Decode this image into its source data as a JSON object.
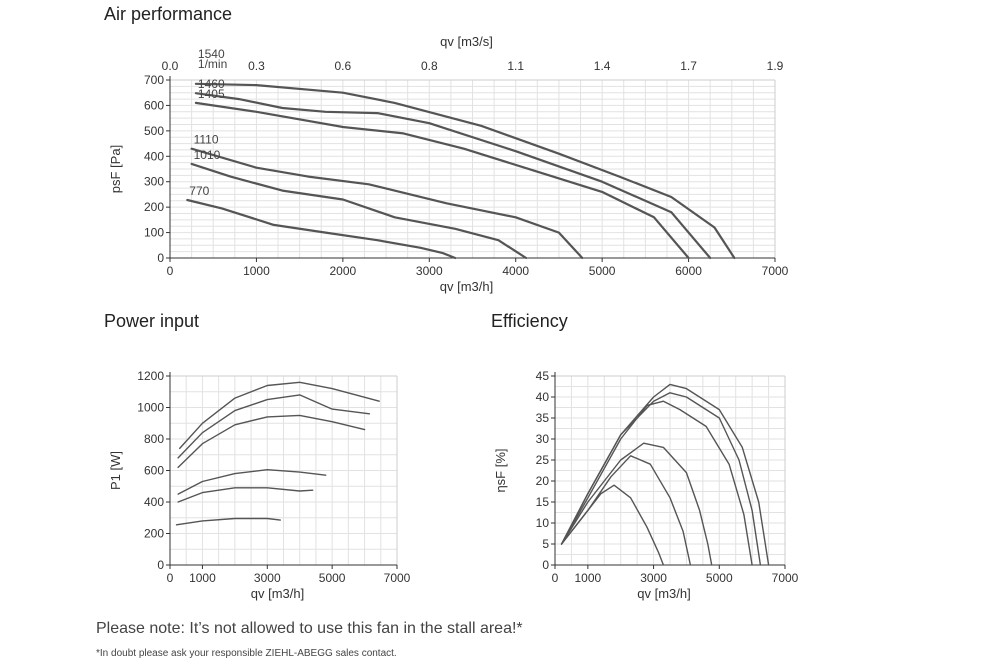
{
  "chart_data": [
    {
      "type": "line",
      "title": "Air performance",
      "xlabel": "qv [m3/h]",
      "ylabel": "psF [Pa]",
      "x2label": "qv [m3/s]",
      "xlim": [
        0,
        7000
      ],
      "ylim": [
        0,
        700
      ],
      "xticks": [
        "0",
        "1000",
        "2000",
        "3000",
        "4000",
        "5000",
        "6000",
        "7000"
      ],
      "yticks": [
        "0",
        "100",
        "200",
        "300",
        "400",
        "500",
        "600",
        "700"
      ],
      "x2ticks": [
        "0.0",
        "0.3",
        "0.6",
        "0.8",
        "1.1",
        "1.4",
        "1.7",
        "1.9"
      ],
      "grid": true,
      "speed_unit": "1/min",
      "series": [
        {
          "name": "1540",
          "x": [
            300,
            1000,
            2000,
            2600,
            3600,
            4500,
            5200,
            5800,
            6300,
            6530
          ],
          "y": [
            685,
            680,
            650,
            610,
            520,
            410,
            320,
            240,
            120,
            0
          ]
        },
        {
          "name": "1460",
          "x": [
            300,
            800,
            1300,
            1800,
            2400,
            3000,
            4000,
            5000,
            5800,
            6250
          ],
          "y": [
            648,
            625,
            590,
            575,
            570,
            530,
            420,
            300,
            180,
            0
          ]
        },
        {
          "name": "1405",
          "x": [
            300,
            1000,
            2000,
            2700,
            3400,
            4200,
            5000,
            5600,
            6000
          ],
          "y": [
            610,
            575,
            515,
            490,
            430,
            345,
            260,
            160,
            0
          ]
        },
        {
          "name": "1110",
          "x": [
            250,
            1000,
            1600,
            2300,
            3200,
            4000,
            4500,
            4770
          ],
          "y": [
            430,
            355,
            320,
            290,
            215,
            160,
            100,
            0
          ]
        },
        {
          "name": "1010",
          "x": [
            250,
            700,
            1300,
            2000,
            2600,
            3300,
            3800,
            4120
          ],
          "y": [
            370,
            320,
            265,
            230,
            160,
            115,
            70,
            0
          ]
        },
        {
          "name": "770",
          "x": [
            200,
            600,
            1200,
            1800,
            2400,
            2900,
            3150,
            3300
          ],
          "y": [
            228,
            195,
            130,
            100,
            70,
            40,
            20,
            0
          ]
        }
      ]
    },
    {
      "type": "line",
      "title": "Power input",
      "xlabel": "qv [m3/h]",
      "ylabel": "P1 [W]",
      "xlim": [
        0,
        7000
      ],
      "ylim": [
        0,
        1200
      ],
      "xticks": [
        "0",
        "1000",
        "3000",
        "5000",
        "7000"
      ],
      "yticks": [
        "0",
        "200",
        "400",
        "600",
        "800",
        "1000",
        "1200"
      ],
      "grid": true,
      "series": [
        {
          "x": [
            300,
            1000,
            2000,
            3000,
            4000,
            5000,
            6450
          ],
          "y": [
            740,
            900,
            1060,
            1140,
            1160,
            1120,
            1040
          ]
        },
        {
          "x": [
            250,
            1000,
            2000,
            3000,
            4000,
            5000,
            6150
          ],
          "y": [
            680,
            840,
            980,
            1050,
            1080,
            990,
            960
          ]
        },
        {
          "x": [
            250,
            1000,
            2000,
            3000,
            4000,
            5000,
            6000
          ],
          "y": [
            620,
            770,
            890,
            940,
            950,
            910,
            860
          ]
        },
        {
          "x": [
            250,
            1000,
            2000,
            3000,
            4000,
            4800
          ],
          "y": [
            450,
            530,
            580,
            605,
            590,
            570
          ]
        },
        {
          "x": [
            250,
            1000,
            2000,
            3000,
            4000,
            4400
          ],
          "y": [
            400,
            460,
            490,
            490,
            470,
            475
          ]
        },
        {
          "x": [
            200,
            1000,
            2000,
            3000,
            3400
          ],
          "y": [
            255,
            280,
            295,
            295,
            285
          ]
        }
      ]
    },
    {
      "type": "line",
      "title": "Efficiency",
      "xlabel": "qv [m3/h]",
      "ylabel": "ηsF [%]",
      "xlim": [
        0,
        7000
      ],
      "ylim": [
        0,
        45
      ],
      "xticks": [
        "0",
        "1000",
        "3000",
        "5000",
        "7000"
      ],
      "yticks": [
        "0",
        "5",
        "10",
        "15",
        "20",
        "25",
        "30",
        "35",
        "40",
        "45"
      ],
      "grid": true,
      "series": [
        {
          "x": [
            200,
            1000,
            2000,
            3000,
            3500,
            4000,
            5000,
            5700,
            6200,
            6500
          ],
          "y": [
            5,
            17,
            31,
            40,
            43,
            42,
            37,
            28,
            15,
            0
          ]
        },
        {
          "x": [
            200,
            1000,
            2000,
            3000,
            3500,
            4000,
            5000,
            5600,
            6000,
            6250
          ],
          "y": [
            5,
            17,
            31,
            39,
            41,
            40,
            35,
            25,
            13,
            0
          ]
        },
        {
          "x": [
            200,
            1000,
            2000,
            2800,
            3300,
            3800,
            4600,
            5300,
            5750,
            6000
          ],
          "y": [
            5,
            16,
            30,
            38,
            39,
            37,
            33,
            24,
            12,
            0
          ]
        },
        {
          "x": [
            200,
            1000,
            2000,
            2700,
            3300,
            4000,
            4400,
            4650,
            4770
          ],
          "y": [
            5,
            15,
            25,
            29,
            28,
            22,
            13,
            5,
            0
          ]
        },
        {
          "x": [
            200,
            1000,
            1700,
            2300,
            2900,
            3500,
            3900,
            4120
          ],
          "y": [
            5,
            13,
            21,
            26,
            24,
            16,
            8,
            0
          ]
        },
        {
          "x": [
            200,
            900,
            1400,
            1800,
            2300,
            2800,
            3150,
            3300
          ],
          "y": [
            5,
            12,
            17,
            19,
            16,
            9,
            3,
            0
          ]
        }
      ]
    }
  ],
  "notes": {
    "stall": "Please note: It’s not allowed to use this fan in the stall area!*",
    "footnote": "*In doubt please ask your responsible ZIEHL-ABEGG sales contact."
  },
  "colors": {
    "curve": "#555555",
    "grid": "#e2e2e2",
    "axis": "#333333",
    "frame": "#cccccc"
  }
}
